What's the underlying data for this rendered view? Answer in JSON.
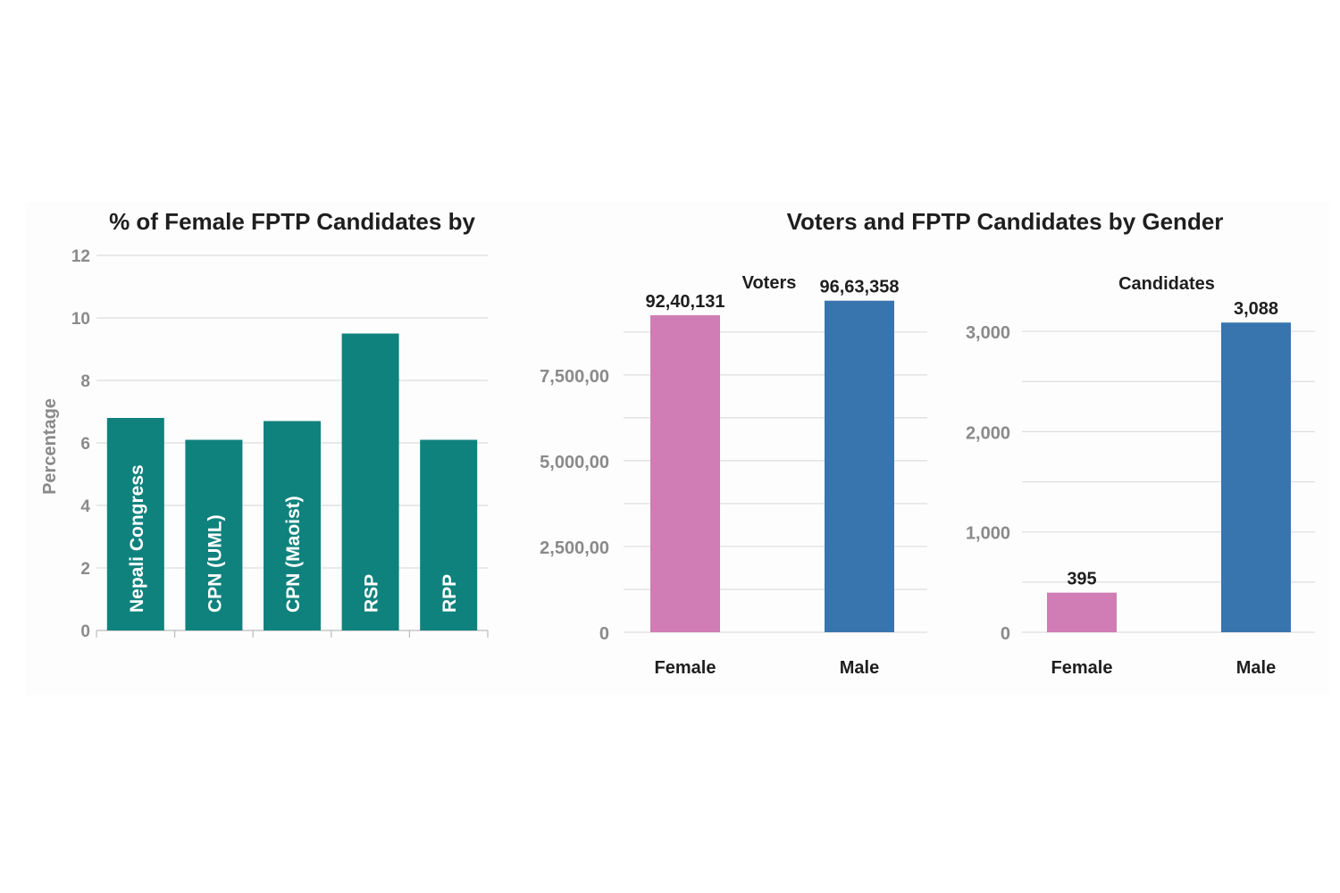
{
  "colors": {
    "teal": "#10827d",
    "pink": "#cf7db4",
    "blue": "#3875af",
    "grid": "#dddddd",
    "axis_text": "#8a8a8a",
    "title_text": "#1e1e1e"
  },
  "chart_data": [
    {
      "type": "bar",
      "title": "% of Female FPTP Candidates by",
      "xlabel": "",
      "ylabel": "Percentage",
      "categories": [
        "Nepali Congress",
        "CPN (UML)",
        "CPN (Maoist)",
        "RSP",
        "RPP"
      ],
      "values": [
        6.8,
        6.1,
        6.7,
        9.5,
        6.1
      ],
      "ylim": [
        0,
        12
      ],
      "yticks": [
        0,
        2,
        4,
        6,
        8,
        10,
        12
      ],
      "ytick_labels": [
        "0",
        "2",
        "4",
        "6",
        "8",
        "10",
        "12"
      ],
      "grid": true
    },
    {
      "type": "bar",
      "title": "Voters and FPTP Candidates by Gender",
      "subtitle": "Voters",
      "categories": [
        "Female",
        "Male"
      ],
      "values": [
        9240131,
        9663358
      ],
      "value_labels": [
        "92,40,131",
        "96,63,358"
      ],
      "ylim": [
        0,
        9500000
      ],
      "yticks": [
        0,
        2500000,
        5000000,
        7500000
      ],
      "ytick_labels": [
        "0",
        "2,500,00",
        "5,000,00",
        "7,500,00"
      ],
      "grid": true
    },
    {
      "type": "bar",
      "subtitle": "Candidates",
      "categories": [
        "Female",
        "Male"
      ],
      "values": [
        395,
        3088
      ],
      "value_labels": [
        "395",
        "3,088"
      ],
      "ylim": [
        0,
        3250
      ],
      "yticks": [
        0,
        1000,
        2000,
        3000
      ],
      "ytick_labels": [
        "0",
        "1,000",
        "2,000",
        "3,000"
      ],
      "grid": true
    }
  ]
}
